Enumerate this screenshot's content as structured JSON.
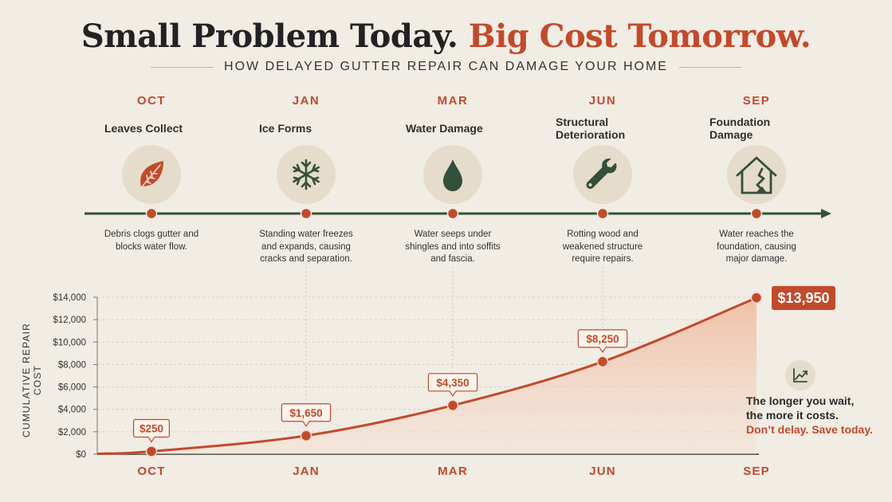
{
  "header": {
    "title_part1": "Small Problem Today.",
    "title_part2": "Big Cost Tomorrow.",
    "subtitle": "HOW DELAYED GUTTER REPAIR CAN DAMAGE YOUR HOME"
  },
  "stages": [
    {
      "month": "OCT",
      "title": "Leaves Collect",
      "icon": "leaf-icon",
      "description": "Debris clogs gutter and blocks water flow."
    },
    {
      "month": "JAN",
      "title": "Ice Forms",
      "icon": "snowflake-icon",
      "description": "Standing water freezes and expands, causing cracks and separation."
    },
    {
      "month": "MAR",
      "title": "Water Damage",
      "icon": "water-drop-icon",
      "description": "Water seeps under shingles and into soffits and fascia."
    },
    {
      "month": "JUN",
      "title": "Structural Deterioration",
      "icon": "wrench-icon",
      "description": "Rotting wood and weakened structure require repairs."
    },
    {
      "month": "SEP",
      "title": "Foundation Damage",
      "icon": "damaged-house-icon",
      "description": "Water reaches the foundation, causing major damage."
    }
  ],
  "chart_data": {
    "type": "area",
    "title": "",
    "xlabel": "",
    "ylabel": "CUMULATIVE REPAIR COST",
    "categories": [
      "OCT",
      "JAN",
      "MAR",
      "JUN",
      "SEP"
    ],
    "series": [
      {
        "values": [
          250,
          1650,
          4350,
          8250,
          13950
        ]
      }
    ],
    "data_labels": [
      "$250",
      "$1,650",
      "$4,350",
      "$8,250",
      "$13,950"
    ],
    "yticks": [
      "$0",
      "$2,000",
      "$4,000",
      "$6,000",
      "$8,000",
      "$10,000",
      "$12,000",
      "$14,000"
    ],
    "ylim": [
      0,
      14000
    ],
    "grid": "horizontal dashed",
    "legend": "none"
  },
  "callout": {
    "line1": "The longer you wait,",
    "line2": "the more it costs.",
    "cta": "Don’t delay. Save today."
  },
  "colors": {
    "background": "#f1ece4",
    "accent": "#c24a2c",
    "timeline": "#33503a",
    "icon_circle": "#e6dccb",
    "area_fill": "#f3c7ad"
  }
}
